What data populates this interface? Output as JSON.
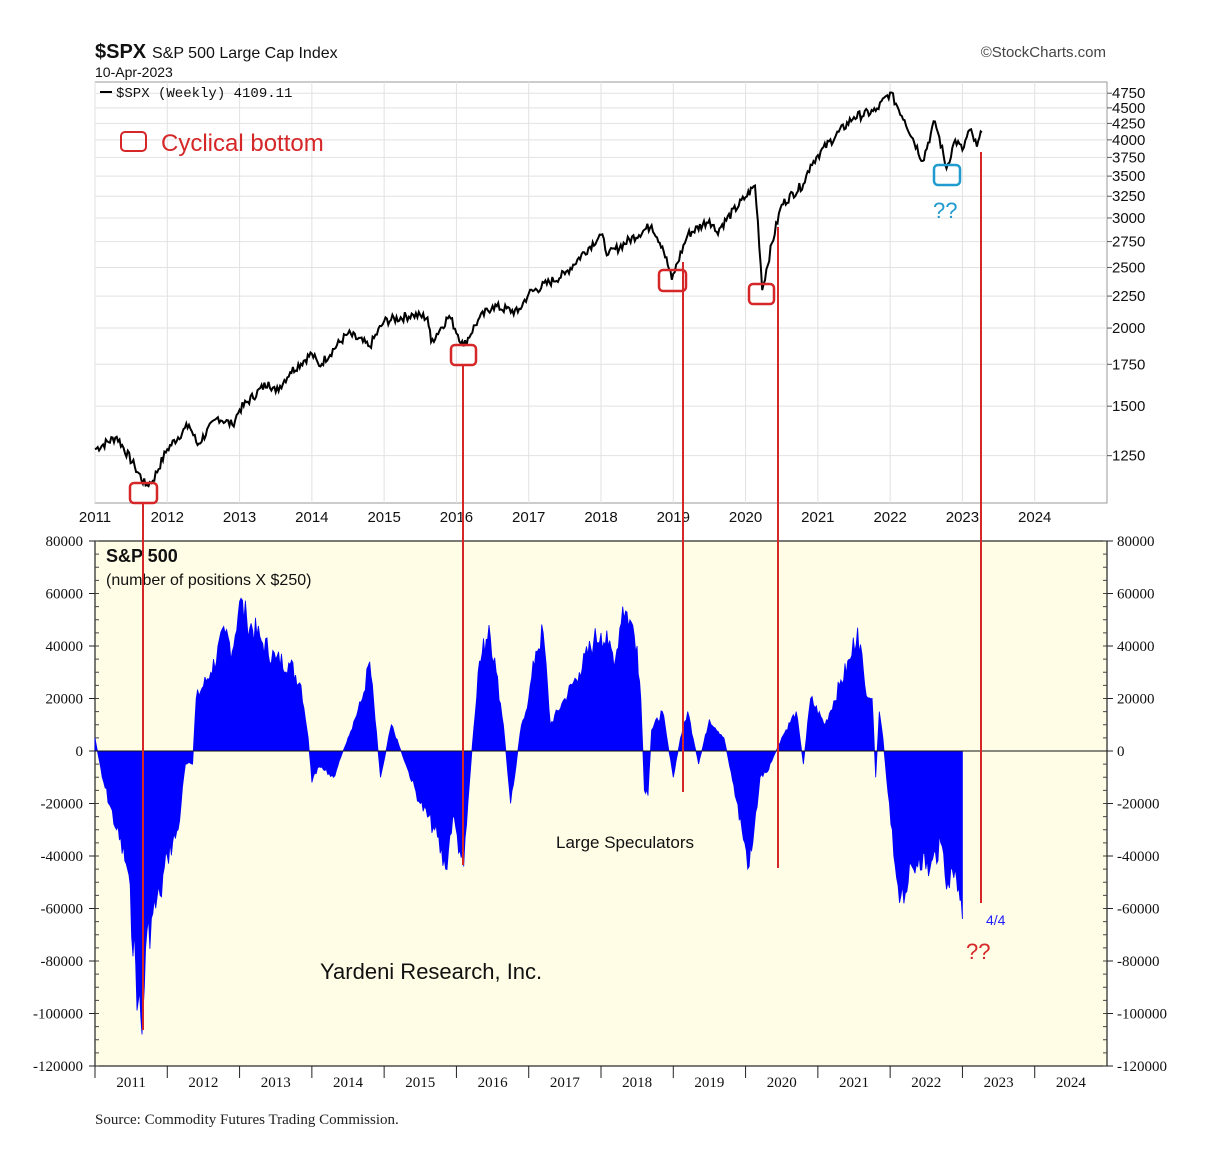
{
  "header": {
    "symbol": "$SPX",
    "name": "S&P 500 Large Cap Index",
    "date": "10-Apr-2023",
    "brand": "©StockCharts.com",
    "legend": "$SPX (Weekly) 4109.11"
  },
  "annotations": {
    "cyclical_bottom": "Cyclical bottom",
    "question_blue": "??",
    "question_red": "??",
    "last_date": "4/4",
    "yardeni": "Yardeni Research, Inc.",
    "source": "Source: Commodity Futures Trading Commission."
  },
  "colors": {
    "price_line": "#000000",
    "position_fill": "#0000ff",
    "marker_red": "#d62728",
    "marker_blue": "#1f9bcf",
    "lower_panel_bg": "#fffde6",
    "grid": "#d8d8d8"
  },
  "chart_data": [
    {
      "type": "line",
      "title": "$SPX S&P 500 Large Cap Index",
      "series": [
        {
          "name": "$SPX (Weekly)",
          "last": 4109.11
        }
      ],
      "x_ticks": [
        "2011",
        "2012",
        "2013",
        "2014",
        "2015",
        "2016",
        "2017",
        "2018",
        "2019",
        "2020",
        "2021",
        "2022",
        "2023",
        "2024"
      ],
      "y_scale": "log",
      "y_ticks": [
        4750,
        4500,
        4250,
        4000,
        3750,
        3500,
        3250,
        3000,
        2750,
        2500,
        2250,
        2000,
        1750,
        1500,
        1250
      ],
      "ylim": [
        1050,
        4950
      ],
      "xlim": [
        2011.0,
        2025.0
      ],
      "keypoints": [
        [
          2011.0,
          1280
        ],
        [
          2011.3,
          1340
        ],
        [
          2011.55,
          1200
        ],
        [
          2011.7,
          1120
        ],
        [
          2011.8,
          1140
        ],
        [
          2012.0,
          1280
        ],
        [
          2012.3,
          1400
        ],
        [
          2012.42,
          1300
        ],
        [
          2012.7,
          1440
        ],
        [
          2012.9,
          1400
        ],
        [
          2013.0,
          1480
        ],
        [
          2013.4,
          1640
        ],
        [
          2013.5,
          1580
        ],
        [
          2013.7,
          1700
        ],
        [
          2014.0,
          1820
        ],
        [
          2014.1,
          1740
        ],
        [
          2014.5,
          1960
        ],
        [
          2014.8,
          1870
        ],
        [
          2015.0,
          2050
        ],
        [
          2015.4,
          2100
        ],
        [
          2015.6,
          2080
        ],
        [
          2015.65,
          1900
        ],
        [
          2015.9,
          2090
        ],
        [
          2016.1,
          1870
        ],
        [
          2016.3,
          2060
        ],
        [
          2016.5,
          2170
        ],
        [
          2016.85,
          2120
        ],
        [
          2017.0,
          2270
        ],
        [
          2017.5,
          2440
        ],
        [
          2018.0,
          2820
        ],
        [
          2018.1,
          2620
        ],
        [
          2018.7,
          2920
        ],
        [
          2018.85,
          2700
        ],
        [
          2018.98,
          2390
        ],
        [
          2019.2,
          2820
        ],
        [
          2019.5,
          2980
        ],
        [
          2019.6,
          2850
        ],
        [
          2020.0,
          3240
        ],
        [
          2020.13,
          3380
        ],
        [
          2020.23,
          2300
        ],
        [
          2020.5,
          3150
        ],
        [
          2020.8,
          3400
        ],
        [
          2020.9,
          3650
        ],
        [
          2021.0,
          3780
        ],
        [
          2021.5,
          4350
        ],
        [
          2021.8,
          4450
        ],
        [
          2022.0,
          4760
        ],
        [
          2022.2,
          4300
        ],
        [
          2022.45,
          3700
        ],
        [
          2022.62,
          4280
        ],
        [
          2022.78,
          3600
        ],
        [
          2022.9,
          4000
        ],
        [
          2023.0,
          3850
        ],
        [
          2023.1,
          4150
        ],
        [
          2023.2,
          3900
        ],
        [
          2023.27,
          4109.11
        ]
      ],
      "bottoms_marked": [
        2011.75,
        2016.1,
        2018.98,
        2020.23
      ],
      "pending_bottom": 2022.78
    },
    {
      "type": "area",
      "title": "S&P 500",
      "subtitle": "(number of positions X $250)",
      "series_label": "Large Speculators",
      "x_ticks": [
        "2011",
        "2012",
        "2013",
        "2014",
        "2015",
        "2016",
        "2017",
        "2018",
        "2019",
        "2020",
        "2021",
        "2022",
        "2023",
        "2024"
      ],
      "y_ticks": [
        80000,
        60000,
        40000,
        20000,
        0,
        -20000,
        -40000,
        -60000,
        -80000,
        -100000,
        -120000
      ],
      "ylim": [
        -120000,
        80000
      ],
      "xlim": [
        2011.0,
        2025.0
      ],
      "keypoints": [
        [
          2011.0,
          5000
        ],
        [
          2011.1,
          -10000
        ],
        [
          2011.3,
          -30000
        ],
        [
          2011.45,
          -45000
        ],
        [
          2011.6,
          -95000
        ],
        [
          2011.65,
          -108000
        ],
        [
          2011.7,
          -75000
        ],
        [
          2011.8,
          -62000
        ],
        [
          2011.9,
          -55000
        ],
        [
          2012.0,
          -40000
        ],
        [
          2012.15,
          -30000
        ],
        [
          2012.25,
          -5000
        ],
        [
          2012.35,
          -5000
        ],
        [
          2012.4,
          20000
        ],
        [
          2012.6,
          30000
        ],
        [
          2012.8,
          45000
        ],
        [
          2012.9,
          38000
        ],
        [
          2013.0,
          57000
        ],
        [
          2013.1,
          50000
        ],
        [
          2013.3,
          42000
        ],
        [
          2013.5,
          35000
        ],
        [
          2013.7,
          33000
        ],
        [
          2013.85,
          25000
        ],
        [
          2013.95,
          5000
        ],
        [
          2014.0,
          -12000
        ],
        [
          2014.1,
          -6000
        ],
        [
          2014.3,
          -10000
        ],
        [
          2014.5,
          5000
        ],
        [
          2014.7,
          20000
        ],
        [
          2014.8,
          34000
        ],
        [
          2014.95,
          -10000
        ],
        [
          2015.1,
          10000
        ],
        [
          2015.3,
          -5000
        ],
        [
          2015.5,
          -20000
        ],
        [
          2015.7,
          -30000
        ],
        [
          2015.85,
          -45000
        ],
        [
          2015.95,
          -25000
        ],
        [
          2016.05,
          -38000
        ],
        [
          2016.1,
          -44000
        ],
        [
          2016.2,
          -5000
        ],
        [
          2016.3,
          30000
        ],
        [
          2016.45,
          48000
        ],
        [
          2016.55,
          30000
        ],
        [
          2016.65,
          10000
        ],
        [
          2016.75,
          -20000
        ],
        [
          2016.9,
          10000
        ],
        [
          2017.0,
          20000
        ],
        [
          2017.1,
          38000
        ],
        [
          2017.2,
          45000
        ],
        [
          2017.3,
          10000
        ],
        [
          2017.5,
          20000
        ],
        [
          2017.7,
          30000
        ],
        [
          2017.9,
          42000
        ],
        [
          2018.0,
          45000
        ],
        [
          2018.1,
          40000
        ],
        [
          2018.2,
          35000
        ],
        [
          2018.3,
          55000
        ],
        [
          2018.4,
          50000
        ],
        [
          2018.5,
          40000
        ],
        [
          2018.55,
          20000
        ],
        [
          2018.6,
          -15000
        ],
        [
          2018.65,
          -17000
        ],
        [
          2018.7,
          8000
        ],
        [
          2018.85,
          15000
        ],
        [
          2019.0,
          -10000
        ],
        [
          2019.1,
          5000
        ],
        [
          2019.2,
          15000
        ],
        [
          2019.35,
          -5000
        ],
        [
          2019.5,
          12000
        ],
        [
          2019.7,
          5000
        ],
        [
          2019.8,
          -8000
        ],
        [
          2019.95,
          -30000
        ],
        [
          2020.05,
          -44000
        ],
        [
          2020.1,
          -35000
        ],
        [
          2020.2,
          -10000
        ],
        [
          2020.3,
          -8000
        ],
        [
          2020.5,
          5000
        ],
        [
          2020.7,
          15000
        ],
        [
          2020.8,
          -5000
        ],
        [
          2020.9,
          20000
        ],
        [
          2021.1,
          10000
        ],
        [
          2021.3,
          25000
        ],
        [
          2021.45,
          35000
        ],
        [
          2021.55,
          47000
        ],
        [
          2021.65,
          25000
        ],
        [
          2021.75,
          20000
        ],
        [
          2021.8,
          -10000
        ],
        [
          2021.85,
          15000
        ],
        [
          2021.9,
          5000
        ],
        [
          2021.95,
          -10000
        ],
        [
          2022.05,
          -40000
        ],
        [
          2022.15,
          -55000
        ],
        [
          2022.25,
          -50000
        ],
        [
          2022.4,
          -40000
        ],
        [
          2022.55,
          -45000
        ],
        [
          2022.7,
          -35000
        ],
        [
          2022.8,
          -50000
        ],
        [
          2022.9,
          -45000
        ],
        [
          2022.95,
          -52000
        ],
        [
          2023.0,
          -64000
        ]
      ],
      "bottoms_marked": [
        2011.65,
        2016.1,
        2018.65,
        2020.05
      ],
      "last_point": {
        "date": "4/4",
        "value": -64000
      }
    }
  ]
}
